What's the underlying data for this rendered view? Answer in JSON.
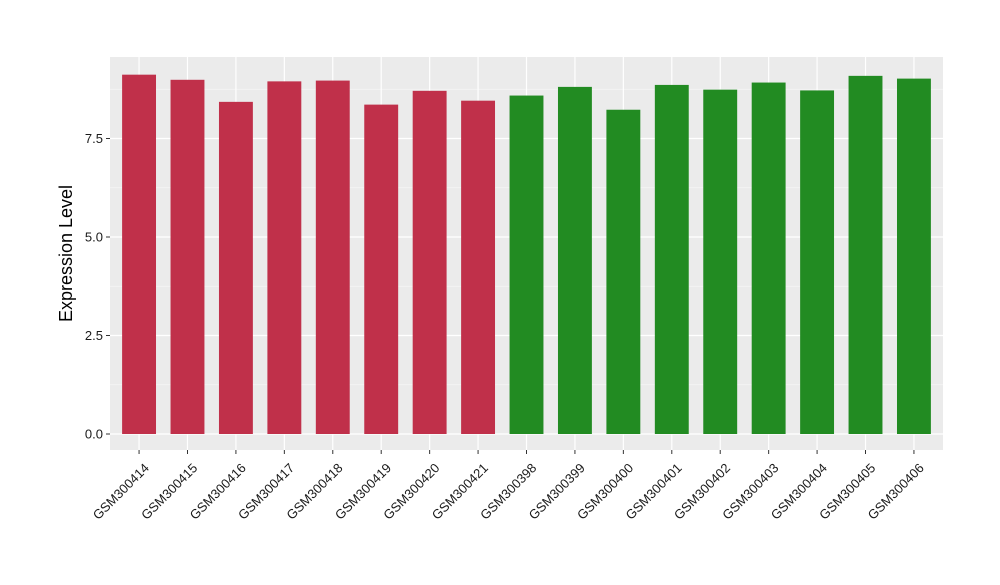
{
  "chart_data": {
    "type": "bar",
    "title": "",
    "xlabel": "",
    "ylabel": "Expression Level",
    "ylim": [
      0,
      9.6
    ],
    "yticks": [
      0.0,
      2.5,
      5.0,
      7.5
    ],
    "ytick_labels": [
      "0.0",
      "2.5",
      "5.0",
      "7.5"
    ],
    "grid": true,
    "legend": "none",
    "categories": [
      "GSM300414",
      "GSM300415",
      "GSM300416",
      "GSM300417",
      "GSM300418",
      "GSM300419",
      "GSM300420",
      "GSM300421",
      "GSM300398",
      "GSM300399",
      "GSM300400",
      "GSM300401",
      "GSM300402",
      "GSM300403",
      "GSM300404",
      "GSM300405",
      "GSM300406"
    ],
    "values": [
      9.12,
      8.99,
      8.43,
      8.95,
      8.97,
      8.36,
      8.71,
      8.46,
      8.59,
      8.81,
      8.23,
      8.86,
      8.74,
      8.92,
      8.72,
      9.09,
      9.02
    ],
    "bar_colors": [
      "#c0304a",
      "#c0304a",
      "#c0304a",
      "#c0304a",
      "#c0304a",
      "#c0304a",
      "#c0304a",
      "#c0304a",
      "#228b22",
      "#228b22",
      "#228b22",
      "#228b22",
      "#228b22",
      "#228b22",
      "#228b22",
      "#228b22",
      "#228b22"
    ],
    "colors": {
      "panel_background": "#ebebeb",
      "gridline_major": "#ffffff",
      "gridline_minor": "#f5f5f5"
    }
  }
}
